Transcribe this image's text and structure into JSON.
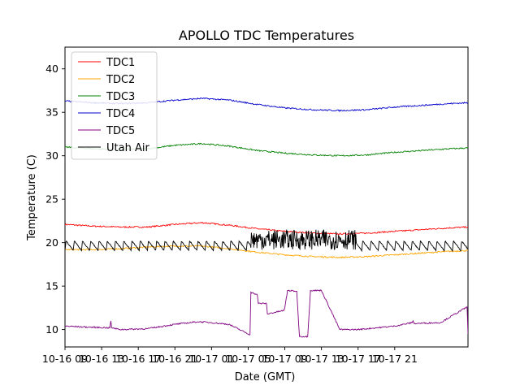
{
  "chart_data": {
    "type": "line",
    "title": "APOLLO TDC Temperatures",
    "xlabel": "Date (GMT)",
    "ylabel": "Temperature (C)",
    "xlim": [
      0,
      44
    ],
    "ylim": [
      8,
      42.5
    ],
    "x_unit": "hours since 10-16 09:00 GMT",
    "x_ticks": [
      {
        "x": 0,
        "label": "10-16 09"
      },
      {
        "x": 4,
        "label": "10-16 13"
      },
      {
        "x": 8,
        "label": "10-16 17"
      },
      {
        "x": 12,
        "label": "10-16 21"
      },
      {
        "x": 16,
        "label": "10-17 01"
      },
      {
        "x": 20,
        "label": "10-17 05"
      },
      {
        "x": 24,
        "label": "10-17 09"
      },
      {
        "x": 28,
        "label": "10-17 13"
      },
      {
        "x": 32,
        "label": "10-17 17"
      },
      {
        "x": 36,
        "label": "10-17 21"
      }
    ],
    "y_ticks": [
      10,
      15,
      20,
      25,
      30,
      35,
      40
    ],
    "legend_position": "top-left",
    "series": [
      {
        "name": "TDC1",
        "color": "#ff0000",
        "x": [
          0,
          3,
          6,
          9,
          12,
          15,
          18,
          21,
          24,
          27,
          30,
          33,
          36,
          39,
          42,
          44
        ],
        "y": [
          22.1,
          21.9,
          21.8,
          21.8,
          22.1,
          22.3,
          22.0,
          21.6,
          21.3,
          21.1,
          21.0,
          21.1,
          21.3,
          21.5,
          21.7,
          21.8
        ]
      },
      {
        "name": "TDC2",
        "color": "#ffa500",
        "x": [
          0,
          3,
          6,
          9,
          12,
          15,
          18,
          21,
          24,
          27,
          30,
          33,
          36,
          39,
          42,
          44
        ],
        "y": [
          19.2,
          19.2,
          19.3,
          19.5,
          19.6,
          19.6,
          19.3,
          18.9,
          18.6,
          18.4,
          18.3,
          18.4,
          18.6,
          18.8,
          19.0,
          19.1
        ]
      },
      {
        "name": "TDC3",
        "color": "#008000",
        "x": [
          0,
          3,
          6,
          9,
          12,
          15,
          18,
          21,
          24,
          27,
          30,
          33,
          36,
          39,
          42,
          44
        ],
        "y": [
          31.0,
          30.8,
          30.7,
          30.8,
          31.2,
          31.4,
          31.1,
          30.6,
          30.3,
          30.1,
          30.0,
          30.1,
          30.4,
          30.6,
          30.8,
          30.9
        ]
      },
      {
        "name": "TDC4",
        "color": "#0000cd",
        "x": [
          0,
          3,
          6,
          9,
          12,
          15,
          18,
          21,
          24,
          27,
          30,
          33,
          36,
          39,
          42,
          44
        ],
        "y": [
          36.3,
          36.1,
          36.0,
          36.1,
          36.4,
          36.6,
          36.4,
          35.9,
          35.5,
          35.3,
          35.2,
          35.3,
          35.6,
          35.8,
          36.0,
          36.1
        ]
      },
      {
        "name": "TDC5",
        "color": "#800080",
        "x": [
          0,
          2,
          4.9,
          5,
          5.1,
          6,
          9,
          12,
          14.5,
          16,
          17.9,
          20.2,
          20.3,
          21,
          21.1,
          22,
          22.1,
          23.9,
          24,
          24.3,
          25.3,
          25.6,
          26.5,
          26.8,
          28,
          30,
          32,
          34,
          36,
          37.9,
          38,
          38.1,
          41,
          43.9,
          44
        ],
        "y": [
          10.4,
          10.3,
          10.2,
          11.0,
          10.2,
          10.0,
          10.1,
          10.6,
          10.9,
          10.8,
          10.6,
          9.4,
          14.3,
          14.0,
          13.0,
          13.0,
          11.8,
          12.2,
          12.5,
          14.5,
          14.4,
          9.2,
          9.2,
          14.5,
          14.5,
          10.0,
          10.0,
          10.2,
          10.4,
          10.8,
          11.0,
          10.7,
          10.8,
          12.6,
          9.5
        ]
      },
      {
        "name": "Utah Air",
        "color": "#000000",
        "sawtooth_low": 19.1,
        "sawtooth_high": 20.2,
        "sawtooth_period_hours": 0.9,
        "oscillation_range": [
          19.2,
          21.5
        ],
        "oscillation_span_hours": [
          20.3,
          31.8
        ]
      }
    ]
  }
}
